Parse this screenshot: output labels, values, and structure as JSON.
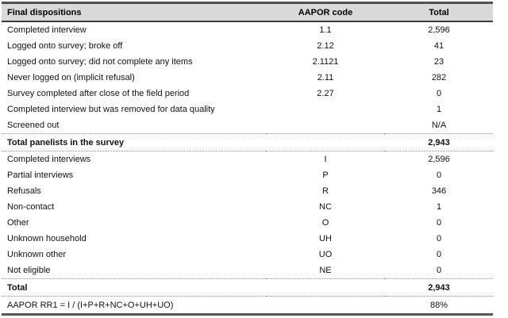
{
  "page": {
    "background": "#ffffff"
  },
  "table": {
    "header": {
      "col_disposition": "Final dispositions",
      "col_code": "AAPOR code",
      "col_total": "Total"
    },
    "rows": [
      {
        "label": "Completed interview",
        "code": "1.1",
        "total": "2,596",
        "kind": "normal"
      },
      {
        "label": "Logged onto survey; broke off",
        "code": "2.12",
        "total": "41",
        "kind": "normal"
      },
      {
        "label": "Logged onto survey; did not complete any items",
        "code": "2.1121",
        "total": "23",
        "kind": "normal"
      },
      {
        "label": "Never logged on (implicit refusal)",
        "code": "2.11",
        "total": "282",
        "kind": "normal"
      },
      {
        "label": "Survey completed after close of the field period",
        "code": "2.27",
        "total": "0",
        "kind": "normal"
      },
      {
        "label": "Completed interview but was removed for data quality",
        "code": "",
        "total": "1",
        "kind": "normal"
      },
      {
        "label": "Screened out",
        "code": "",
        "total": "N/A",
        "kind": "normal"
      },
      {
        "label": "Total panelists in the survey",
        "code": "",
        "total": "2,943",
        "kind": "subtotal"
      },
      {
        "label": "Completed interviews",
        "code": "I",
        "total": "2,596",
        "kind": "normal"
      },
      {
        "label": "Partial interviews",
        "code": "P",
        "total": "0",
        "kind": "normal"
      },
      {
        "label": "Refusals",
        "code": "R",
        "total": "346",
        "kind": "normal"
      },
      {
        "label": "Non-contact",
        "code": "NC",
        "total": "1",
        "kind": "normal"
      },
      {
        "label": "Other",
        "code": "O",
        "total": "0",
        "kind": "normal"
      },
      {
        "label": "Unknown household",
        "code": "UH",
        "total": "0",
        "kind": "normal"
      },
      {
        "label": "Unknown other",
        "code": "UO",
        "total": "0",
        "kind": "normal"
      },
      {
        "label": "Not eligible",
        "code": "NE",
        "total": "0",
        "kind": "normal"
      },
      {
        "label": "Total",
        "code": "",
        "total": "2,943",
        "kind": "subtotal"
      },
      {
        "label": "AAPOR RR1 = I / (I+P+R+NC+O+UH+UO)",
        "code": "",
        "total": "88%",
        "kind": "footer"
      }
    ],
    "colors": {
      "header_bg": "#d9d9d9",
      "rule_dark": "#4f4f4f",
      "rule_bottom": "#565656",
      "dotted_separator": "#8a8a8a",
      "text": "#111111"
    }
  },
  "chart_data": {
    "type": "table",
    "title": "Final dispositions",
    "columns": [
      "Final dispositions",
      "AAPOR code",
      "Total"
    ],
    "rows": [
      [
        "Completed interview",
        "1.1",
        "2,596"
      ],
      [
        "Logged onto survey; broke off",
        "2.12",
        "41"
      ],
      [
        "Logged onto survey; did not complete any items",
        "2.1121",
        "23"
      ],
      [
        "Never logged on (implicit refusal)",
        "2.11",
        "282"
      ],
      [
        "Survey completed after close of the field period",
        "2.27",
        "0"
      ],
      [
        "Completed interview but was removed for data quality",
        "",
        "1"
      ],
      [
        "Screened out",
        "",
        "N/A"
      ],
      [
        "Total panelists in the survey",
        "",
        "2,943"
      ],
      [
        "Completed interviews",
        "I",
        "2,596"
      ],
      [
        "Partial interviews",
        "P",
        "0"
      ],
      [
        "Refusals",
        "R",
        "346"
      ],
      [
        "Non-contact",
        "NC",
        "1"
      ],
      [
        "Other",
        "O",
        "0"
      ],
      [
        "Unknown household",
        "UH",
        "0"
      ],
      [
        "Unknown other",
        "UO",
        "0"
      ],
      [
        "Not eligible",
        "NE",
        "0"
      ],
      [
        "Total",
        "",
        "2,943"
      ],
      [
        "AAPOR RR1 = I / (I+P+R+NC+O+UH+UO)",
        "",
        "88%"
      ]
    ]
  }
}
